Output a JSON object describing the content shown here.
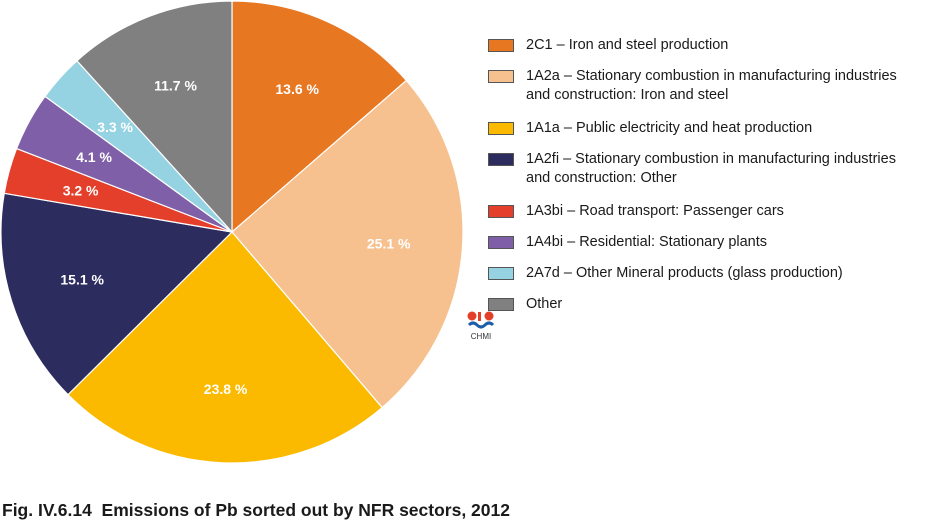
{
  "chart_data": {
    "type": "pie",
    "title": "",
    "start_angle_deg": 0,
    "direction": "clockwise",
    "slices": [
      {
        "legend": "2C1 – Iron and steel production",
        "value": 13.6,
        "label": "13.6 %",
        "color": "#E87722"
      },
      {
        "legend": "1A2a – Stationary combustion in manufacturing industries\nand construction: Iron and steel",
        "value": 25.1,
        "label": "25.1 %",
        "color": "#F7C08F"
      },
      {
        "legend": "1A1a – Public electricity and heat production",
        "value": 23.8,
        "label": "23.8 %",
        "color": "#FBB900"
      },
      {
        "legend": "1A2fi – Stationary combustion in manufacturing industries\nand construction: Other",
        "value": 15.1,
        "label": "15.1 %",
        "color": "#2C2C5F"
      },
      {
        "legend": "1A3bi – Road transport: Passenger cars",
        "value": 3.2,
        "label": "3.2 %",
        "color": "#E43F2A"
      },
      {
        "legend": "1A4bi – Residential: Stationary plants",
        "value": 4.1,
        "label": "4.1 %",
        "color": "#7F60A8"
      },
      {
        "legend": "2A7d – Other Mineral products (glass production)",
        "value": 3.3,
        "label": "3.3 %",
        "color": "#95D2E2"
      },
      {
        "legend": "Other",
        "value": 11.7,
        "label": "11.7 %",
        "color": "#808080"
      }
    ],
    "legend_position": "right"
  },
  "logo": {
    "text": "CHMI"
  },
  "caption": "Fig. IV.6.14  Emissions of Pb sorted out by NFR sectors, 2012"
}
